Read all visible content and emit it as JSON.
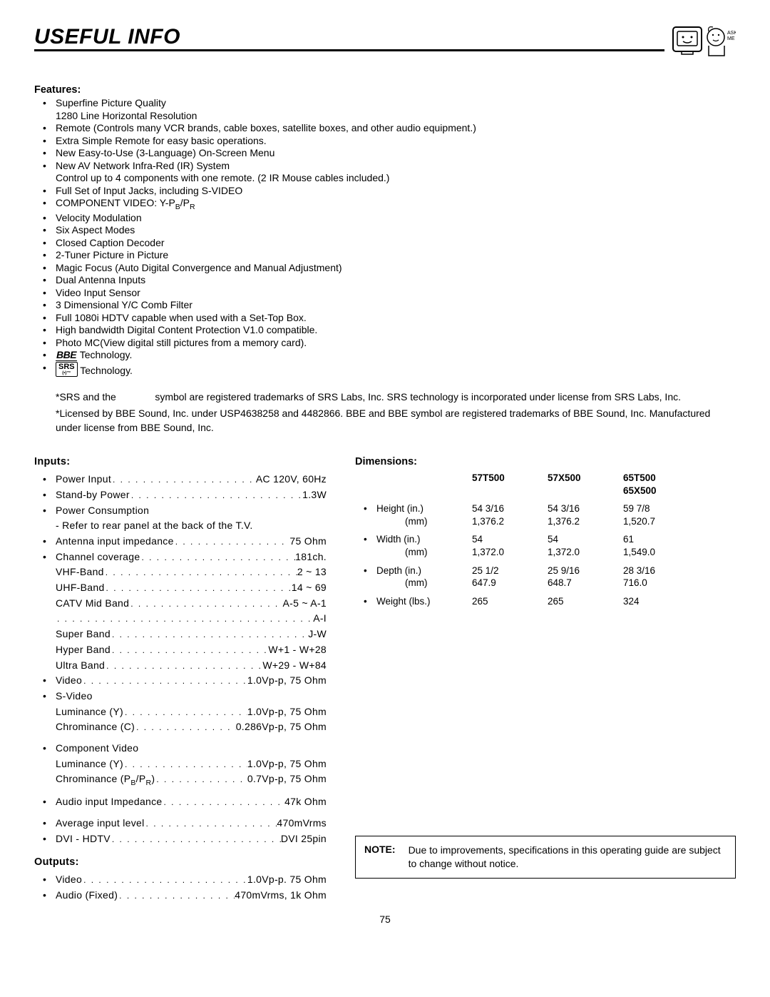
{
  "page": {
    "title": "USEFUL INFO",
    "page_number": "75"
  },
  "features": {
    "heading": "Features:",
    "items": [
      [
        "Superfine Picture Quality",
        "1280 Line Horizontal Resolution"
      ],
      [
        "Remote (Controls many VCR brands, cable boxes, satellite boxes, and other audio equipment.)"
      ],
      [
        "Extra Simple Remote for easy basic operations."
      ],
      [
        "New Easy-to-Use (3-Language) On-Screen Menu"
      ],
      [
        "New AV Network Infra-Red (IR) System",
        "Control up to 4 components with one remote. (2 IR Mouse cables included.)"
      ],
      [
        "Full Set of Input Jacks, including S-VIDEO"
      ],
      [
        "COMPONENT VIDEO: Y-P",
        "B",
        "/P",
        "R"
      ],
      [
        "Velocity Modulation"
      ],
      [
        "Six Aspect Modes"
      ],
      [
        "Closed Caption Decoder"
      ],
      [
        "2-Tuner Picture in Picture"
      ],
      [
        "Magic Focus (Auto Digital Convergence and Manual Adjustment)"
      ],
      [
        "Dual Antenna Inputs"
      ],
      [
        "Video Input Sensor"
      ],
      [
        "3 Dimensional Y/C Comb Filter"
      ],
      [
        "Full 1080i HDTV capable when used with a Set-Top Box."
      ],
      [
        "High bandwidth Digital  Content Protection V1.0 compatible."
      ],
      [
        "Photo MC(View digital still pictures from a memory card)."
      ],
      [
        "BBE Technology."
      ],
      [
        "SRS Technology."
      ]
    ],
    "srs_note_pre": "*SRS and the",
    "srs_note_post": "symbol are registered trademarks of SRS Labs, Inc. SRS technology is incorporated under license from SRS Labs, Inc.",
    "bbe_note": "*Licensed by BBE Sound, Inc. under USP4638258 and 4482866.  BBE and BBE symbol are registered trademarks of BBE Sound,  Inc.  Manufactured under license from BBE Sound, Inc."
  },
  "inputs": {
    "heading": "Inputs:",
    "items": [
      {
        "bullet": true,
        "label": "Power Input",
        "value": "AC 120V, 60Hz"
      },
      {
        "bullet": true,
        "label": "Stand-by Power",
        "value": "1.3W"
      },
      {
        "bullet": true,
        "label": "Power Consumption",
        "value": "",
        "nodots": true
      },
      {
        "bullet": false,
        "label": "- Refer to rear panel at the back of the T.V.",
        "value": "",
        "nodots": true
      },
      {
        "bullet": true,
        "label": "Antenna input impedance",
        "value": "75 Ohm"
      },
      {
        "bullet": true,
        "label": "Channel coverage",
        "value": "181ch."
      },
      {
        "bullet": false,
        "label": "VHF-Band",
        "value": "2 ~ 13"
      },
      {
        "bullet": false,
        "label": "UHF-Band",
        "value": "14 ~ 69"
      },
      {
        "bullet": false,
        "label": "CATV Mid Band",
        "value": "A-5 ~ A-1"
      },
      {
        "bullet": false,
        "label": "",
        "value": "A-I"
      },
      {
        "bullet": false,
        "label": "Super Band",
        "value": "J-W"
      },
      {
        "bullet": false,
        "label": "Hyper Band",
        "value": "W+1 - W+28"
      },
      {
        "bullet": false,
        "label": "Ultra Band",
        "value": "W+29 - W+84"
      },
      {
        "bullet": true,
        "label": "Video",
        "value": "1.0Vp-p, 75 Ohm"
      },
      {
        "bullet": true,
        "label": "S-Video",
        "value": "",
        "nodots": true
      },
      {
        "bullet": false,
        "label": "Luminance (Y)",
        "value": "1.0Vp-p, 75 Ohm"
      },
      {
        "bullet": false,
        "label": "Chrominance (C)",
        "value": "0.286Vp-p, 75 Ohm"
      },
      {
        "bullet": true,
        "label": "Component Video",
        "value": "",
        "nodots": true,
        "pretop": true
      },
      {
        "bullet": false,
        "label": "Luminance (Y)",
        "value": "1.0Vp-p, 75 Ohm"
      },
      {
        "bullet": false,
        "label": "Chrominance (P",
        "value": "0.7Vp-p, 75 Ohm",
        "sub": "B/PR)"
      },
      {
        "bullet": true,
        "label": "Audio input Impedance",
        "value": "47k Ohm",
        "pretop": true
      },
      {
        "bullet": true,
        "label": "Average input level",
        "value": "470mVrms",
        "pretop": true
      },
      {
        "bullet": true,
        "label": "DVI - HDTV",
        "value": "DVI 25pin"
      }
    ]
  },
  "outputs": {
    "heading": "Outputs:",
    "items": [
      {
        "bullet": true,
        "label": "Video",
        "value": "1.0Vp-p. 75 Ohm"
      },
      {
        "bullet": true,
        "label": "Audio (Fixed)",
        "value": "470mVrms, 1k Ohm"
      }
    ]
  },
  "dimensions": {
    "heading": "Dimensions:",
    "columns": [
      "57T500",
      "57X500",
      "65T500 65X500"
    ],
    "rows": [
      {
        "label": "Height (in.)",
        "sub": "(mm)",
        "vals_top": [
          "54 3/16",
          "54 3/16",
          "59 7/8"
        ],
        "vals_bot": [
          "1,376.2",
          "1,376.2",
          "1,520.7"
        ]
      },
      {
        "label": "Width (in.)",
        "sub": "(mm)",
        "vals_top": [
          "54",
          "54",
          "61"
        ],
        "vals_bot": [
          "1,372.0",
          "1,372.0",
          "1,549.0"
        ]
      },
      {
        "label": "Depth (in.)",
        "sub": "(mm)",
        "vals_top": [
          "25 1/2",
          "25 9/16",
          "28 3/16"
        ],
        "vals_bot": [
          "647.9",
          "648.7",
          "716.0"
        ]
      },
      {
        "label": "Weight (lbs.)",
        "sub": "",
        "vals_top": [
          "265",
          "265",
          "324"
        ],
        "vals_bot": [
          "",
          "",
          ""
        ]
      }
    ]
  },
  "note": {
    "label": "NOTE:",
    "text": "Due to improvements, specifications in this operating guide are subject to change without notice."
  }
}
